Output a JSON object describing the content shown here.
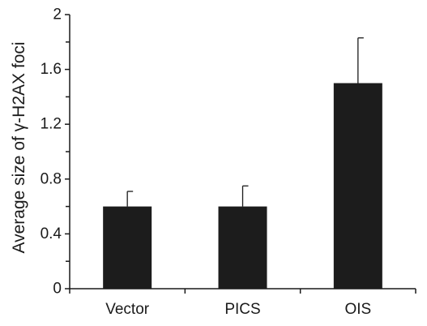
{
  "chart_data": {
    "type": "bar",
    "title": "",
    "xlabel": "",
    "ylabel": "Average size of γ-H2AX foci",
    "categories": [
      "Vector",
      "PICS",
      "OIS"
    ],
    "values": [
      0.6,
      0.6,
      1.5
    ],
    "error_upper": [
      0.11,
      0.15,
      0.33
    ],
    "ylim": [
      0,
      2
    ],
    "major_ticks": [
      0,
      0.4,
      0.8,
      1.2,
      1.6,
      2
    ],
    "y_tick_labels": [
      "0",
      "0.4",
      "0.8",
      "1.2",
      "1.6",
      "2"
    ],
    "minor_tick_step": 0.2,
    "grid": false,
    "legend": "none",
    "bar_color": "#1c1c1c"
  }
}
